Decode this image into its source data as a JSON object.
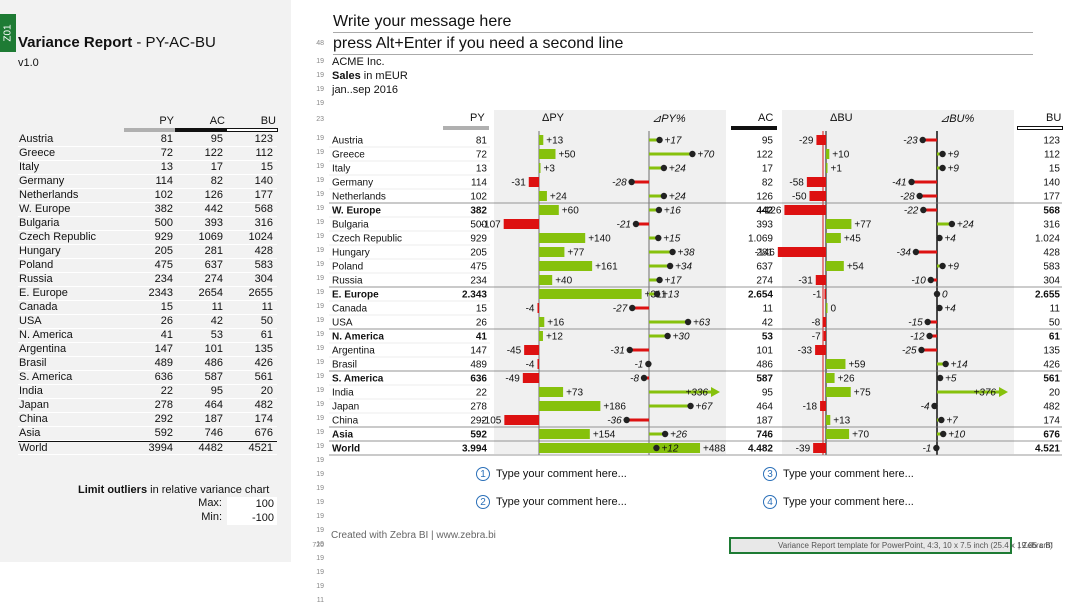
{
  "sheet": {
    "tab": "Z01",
    "title_bold": "Variance Report",
    "title_rest": " - PY-AC-BU",
    "version": "v1.0",
    "headers": [
      "PY",
      "AC",
      "BU"
    ],
    "rows": [
      [
        "Austria",
        "81",
        "95",
        "123"
      ],
      [
        "Greece",
        "72",
        "122",
        "112"
      ],
      [
        "Italy",
        "13",
        "17",
        "15"
      ],
      [
        "Germany",
        "114",
        "82",
        "140"
      ],
      [
        "Netherlands",
        "102",
        "126",
        "177"
      ],
      [
        "W. Europe",
        "382",
        "442",
        "568"
      ],
      [
        "Bulgaria",
        "500",
        "393",
        "316"
      ],
      [
        "Czech Republic",
        "929",
        "1069",
        "1024"
      ],
      [
        "Hungary",
        "205",
        "281",
        "428"
      ],
      [
        "Poland",
        "475",
        "637",
        "583"
      ],
      [
        "Russia",
        "234",
        "274",
        "304"
      ],
      [
        "E. Europe",
        "2343",
        "2654",
        "2655"
      ],
      [
        "Canada",
        "15",
        "11",
        "11"
      ],
      [
        "USA",
        "26",
        "42",
        "50"
      ],
      [
        "N. America",
        "41",
        "53",
        "61"
      ],
      [
        "Argentina",
        "147",
        "101",
        "135"
      ],
      [
        "Brasil",
        "489",
        "486",
        "426"
      ],
      [
        "S. America",
        "636",
        "587",
        "561"
      ],
      [
        "India",
        "22",
        "95",
        "20"
      ],
      [
        "Japan",
        "278",
        "464",
        "482"
      ],
      [
        "China",
        "292",
        "187",
        "174"
      ],
      [
        "Asia",
        "592",
        "746",
        "676"
      ],
      [
        "World",
        "3994",
        "4482",
        "4521"
      ]
    ],
    "limit_label_bold": "Limit outliers",
    "limit_label_rest": " in relative variance chart",
    "max_label": "Max:",
    "max_value": "100",
    "min_label": "Min:",
    "min_value": "-100"
  },
  "ruler": {
    "top": "48",
    "marks": [
      "19",
      "19",
      "19",
      "19",
      "23",
      "19",
      "19",
      "19",
      "19",
      "19",
      "19",
      "19",
      "19",
      "19",
      "19",
      "19",
      "19",
      "19",
      "19",
      "19",
      "19",
      "19",
      "19",
      "19",
      "19",
      "19",
      "19",
      "19",
      "19",
      "19",
      "19",
      "19",
      "19",
      "19",
      "19",
      "19",
      "19",
      "19",
      "11"
    ],
    "bottom": "720"
  },
  "slide": {
    "message_line1": "Write your message here",
    "message_line2": "press Alt+Enter if you need a second line",
    "company": "ACME Inc.",
    "measure_bold": "Sales",
    "measure_rest": " in mEUR",
    "period": "jan..sep 2016",
    "col_py": "PY",
    "col_dpy": "ΔPY",
    "col_dpyp": "⊿PY%",
    "col_ac": "AC",
    "col_dbu": "ΔBU",
    "col_dbup": "⊿BU%",
    "col_bu": "BU",
    "comments": [
      "Type your comment here...",
      "Type your comment here...",
      "Type your comment here...",
      "Type your comment here..."
    ],
    "comment_nums": [
      "1",
      "2",
      "3",
      "4"
    ],
    "footer": "Created with Zebra BI  |  www.zebra.bi",
    "bottom_note": "Variance Report template for PowerPoint, 4:3, 10 x 7.5 inch (25.4 x 19.05 cm)",
    "bottom_brand": "|  Zebra BI",
    "colors": {
      "good": "#86c10c",
      "bad": "#dd1111",
      "accent": "#1e7b34"
    }
  },
  "chart_data": {
    "type": "table",
    "rows": [
      {
        "name": "Austria",
        "py": "81",
        "dpy": 13,
        "dpyp": 17,
        "ac": "95",
        "dbu": -29,
        "dbup": -23,
        "bu": "123",
        "total": false
      },
      {
        "name": "Greece",
        "py": "72",
        "dpy": 50,
        "dpyp": 70,
        "ac": "122",
        "dbu": 10,
        "dbup": 9,
        "bu": "112",
        "total": false
      },
      {
        "name": "Italy",
        "py": "13",
        "dpy": 3,
        "dpyp": 24,
        "ac": "17",
        "dbu": 1,
        "dbup": 9,
        "bu": "15",
        "total": false
      },
      {
        "name": "Germany",
        "py": "114",
        "dpy": -31,
        "dpyp": -28,
        "ac": "82",
        "dbu": -58,
        "dbup": -41,
        "bu": "140",
        "total": false
      },
      {
        "name": "Netherlands",
        "py": "102",
        "dpy": 24,
        "dpyp": 24,
        "ac": "126",
        "dbu": -50,
        "dbup": -28,
        "bu": "177",
        "total": false
      },
      {
        "name": "W. Europe",
        "py": "382",
        "dpy": 60,
        "dpyp": 16,
        "ac": "442",
        "dbu": -126,
        "dbup": -22,
        "bu": "568",
        "total": true
      },
      {
        "name": "Bulgaria",
        "py": "500",
        "dpy": -107,
        "dpyp": -21,
        "ac": "393",
        "dbu": 77,
        "dbup": 24,
        "bu": "316",
        "total": false
      },
      {
        "name": "Czech Republic",
        "py": "929",
        "dpy": 140,
        "dpyp": 15,
        "ac": "1.069",
        "dbu": 45,
        "dbup": 4,
        "bu": "1.024",
        "total": false
      },
      {
        "name": "Hungary",
        "py": "205",
        "dpy": 77,
        "dpyp": 38,
        "ac": "281",
        "dbu": -146,
        "dbup": -34,
        "bu": "428",
        "total": false
      },
      {
        "name": "Poland",
        "py": "475",
        "dpy": 161,
        "dpyp": 34,
        "ac": "637",
        "dbu": 54,
        "dbup": 9,
        "bu": "583",
        "total": false
      },
      {
        "name": "Russia",
        "py": "234",
        "dpy": 40,
        "dpyp": 17,
        "ac": "274",
        "dbu": -31,
        "dbup": -10,
        "bu": "304",
        "total": false
      },
      {
        "name": "E. Europe",
        "py": "2.343",
        "dpy": 311,
        "dpyp": 13,
        "ac": "2.654",
        "dbu": -1,
        "dbup": 0,
        "bu": "2.655",
        "total": true
      },
      {
        "name": "Canada",
        "py": "15",
        "dpy": -4,
        "dpyp": -27,
        "ac": "11",
        "dbu": 0,
        "dbup": 4,
        "bu": "11",
        "total": false
      },
      {
        "name": "USA",
        "py": "26",
        "dpy": 16,
        "dpyp": 63,
        "ac": "42",
        "dbu": -8,
        "dbup": -15,
        "bu": "50",
        "total": false
      },
      {
        "name": "N. America",
        "py": "41",
        "dpy": 12,
        "dpyp": 30,
        "ac": "53",
        "dbu": -7,
        "dbup": -12,
        "bu": "61",
        "total": true
      },
      {
        "name": "Argentina",
        "py": "147",
        "dpy": -45,
        "dpyp": -31,
        "ac": "101",
        "dbu": -33,
        "dbup": -25,
        "bu": "135",
        "total": false
      },
      {
        "name": "Brasil",
        "py": "489",
        "dpy": -4,
        "dpyp": -1,
        "ac": "486",
        "dbu": 59,
        "dbup": 14,
        "bu": "426",
        "total": false
      },
      {
        "name": "S. America",
        "py": "636",
        "dpy": -49,
        "dpyp": -8,
        "ac": "587",
        "dbu": 26,
        "dbup": 5,
        "bu": "561",
        "total": true
      },
      {
        "name": "India",
        "py": "22",
        "dpy": 73,
        "dpyp": 336,
        "ac": "95",
        "dbu": 75,
        "dbup": 376,
        "bu": "20",
        "total": false
      },
      {
        "name": "Japan",
        "py": "278",
        "dpy": 186,
        "dpyp": 67,
        "ac": "464",
        "dbu": -18,
        "dbup": -4,
        "bu": "482",
        "total": false
      },
      {
        "name": "China",
        "py": "292",
        "dpy": -105,
        "dpyp": -36,
        "ac": "187",
        "dbu": 13,
        "dbup": 7,
        "bu": "174",
        "total": false
      },
      {
        "name": "Asia",
        "py": "592",
        "dpy": 154,
        "dpyp": 26,
        "ac": "746",
        "dbu": 70,
        "dbup": 10,
        "bu": "676",
        "total": true
      },
      {
        "name": "World",
        "py": "3.994",
        "dpy": 488,
        "dpyp": 12,
        "ac": "4.482",
        "dbu": -39,
        "dbup": -1,
        "bu": "4.521",
        "total": true
      }
    ],
    "pct_limit": [
      -100,
      100
    ]
  }
}
